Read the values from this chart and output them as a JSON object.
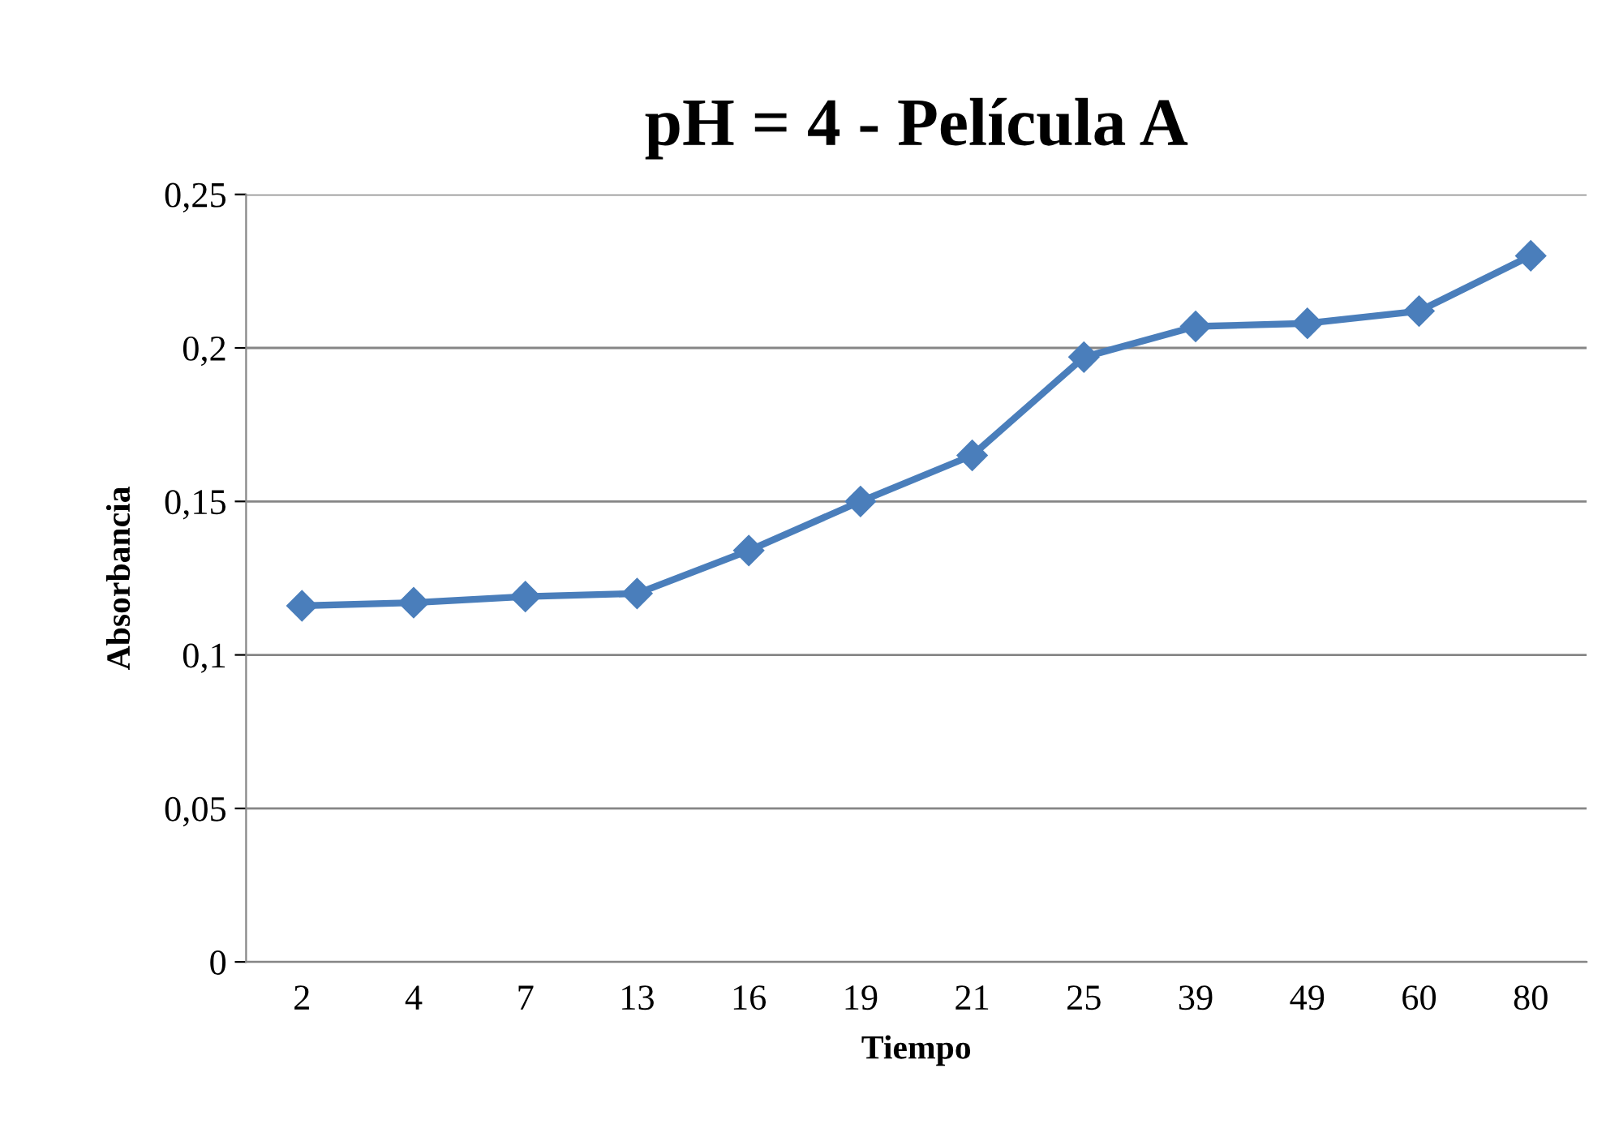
{
  "chart_data": {
    "type": "line",
    "title": "pH = 4 - Película A",
    "xlabel": "Tiempo",
    "ylabel": "Absorbancia",
    "categories": [
      "2",
      "4",
      "7",
      "13",
      "16",
      "19",
      "21",
      "25",
      "39",
      "49",
      "60",
      "80"
    ],
    "series": [
      {
        "color": "#4a7ebb",
        "values": [
          0.116,
          0.117,
          0.119,
          0.12,
          0.134,
          0.15,
          0.165,
          0.197,
          0.207,
          0.208,
          0.212,
          0.23
        ]
      }
    ],
    "ylim": [
      0,
      0.25
    ],
    "yticks": [
      {
        "value": 0,
        "label": "0"
      },
      {
        "value": 0.05,
        "label": "0,05"
      },
      {
        "value": 0.1,
        "label": "0,1"
      },
      {
        "value": 0.15,
        "label": "0,15"
      },
      {
        "value": 0.2,
        "label": "0,2"
      },
      {
        "value": 0.25,
        "label": "0,25"
      }
    ],
    "grid": "y",
    "marker": "diamond",
    "line_style": "solid"
  }
}
